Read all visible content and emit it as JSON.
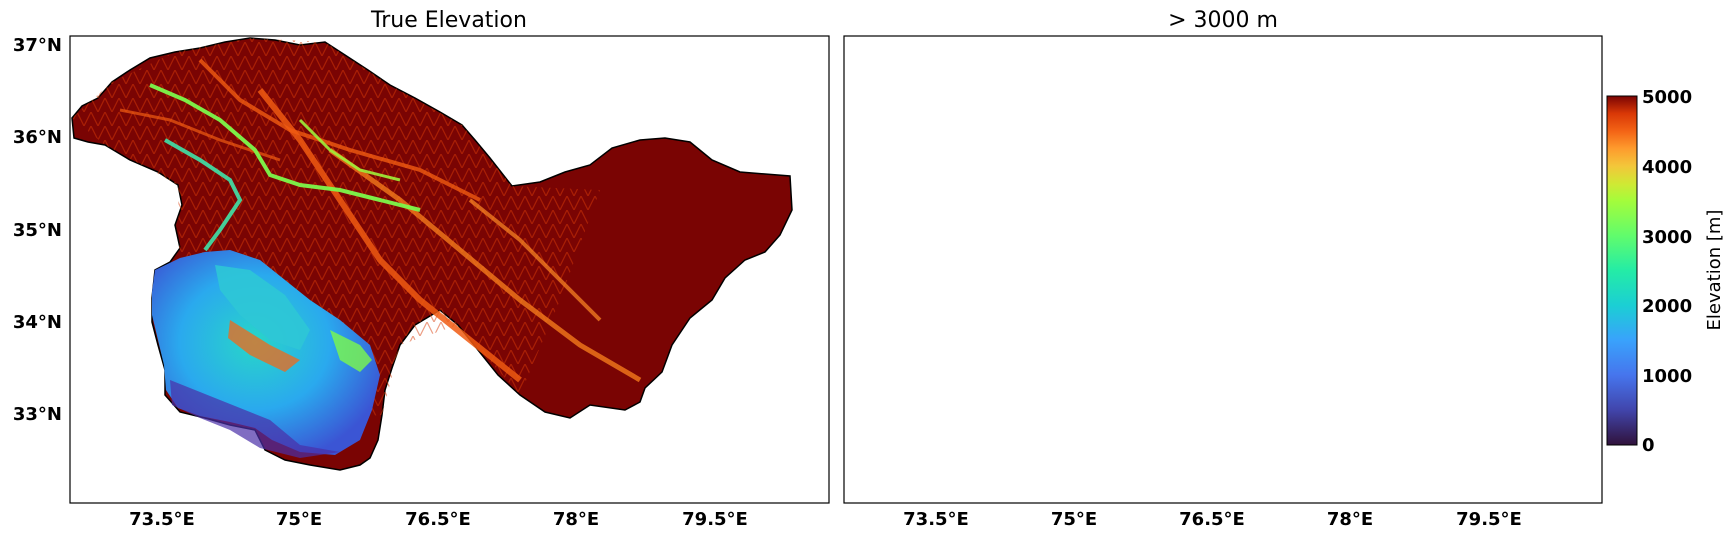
{
  "panels": [
    {
      "title": "True Elevation"
    },
    {
      "title": "> 3000 m"
    }
  ],
  "lat_ticks": [
    "37°N",
    "36°N",
    "35°N",
    "34°N",
    "33°N"
  ],
  "lon_ticks": [
    "73.5°E",
    "75°E",
    "76.5°E",
    "78°E",
    "79.5°E"
  ],
  "colorbar": {
    "label": "Elevation [m]",
    "ticks": [
      "5000",
      "4000",
      "3000",
      "2000",
      "1000",
      "0"
    ],
    "min": 0,
    "max": 5000,
    "colormap": "turbo"
  },
  "threshold_m": 3000,
  "colors": {
    "high_elevation": "#7a0403",
    "ridge_orange": "#f05b12",
    "valley_green": "#7cf94b",
    "lowland_cyan": "#28bceb",
    "low_blue": "#3e5ad8",
    "masked": "#ffffff"
  }
}
